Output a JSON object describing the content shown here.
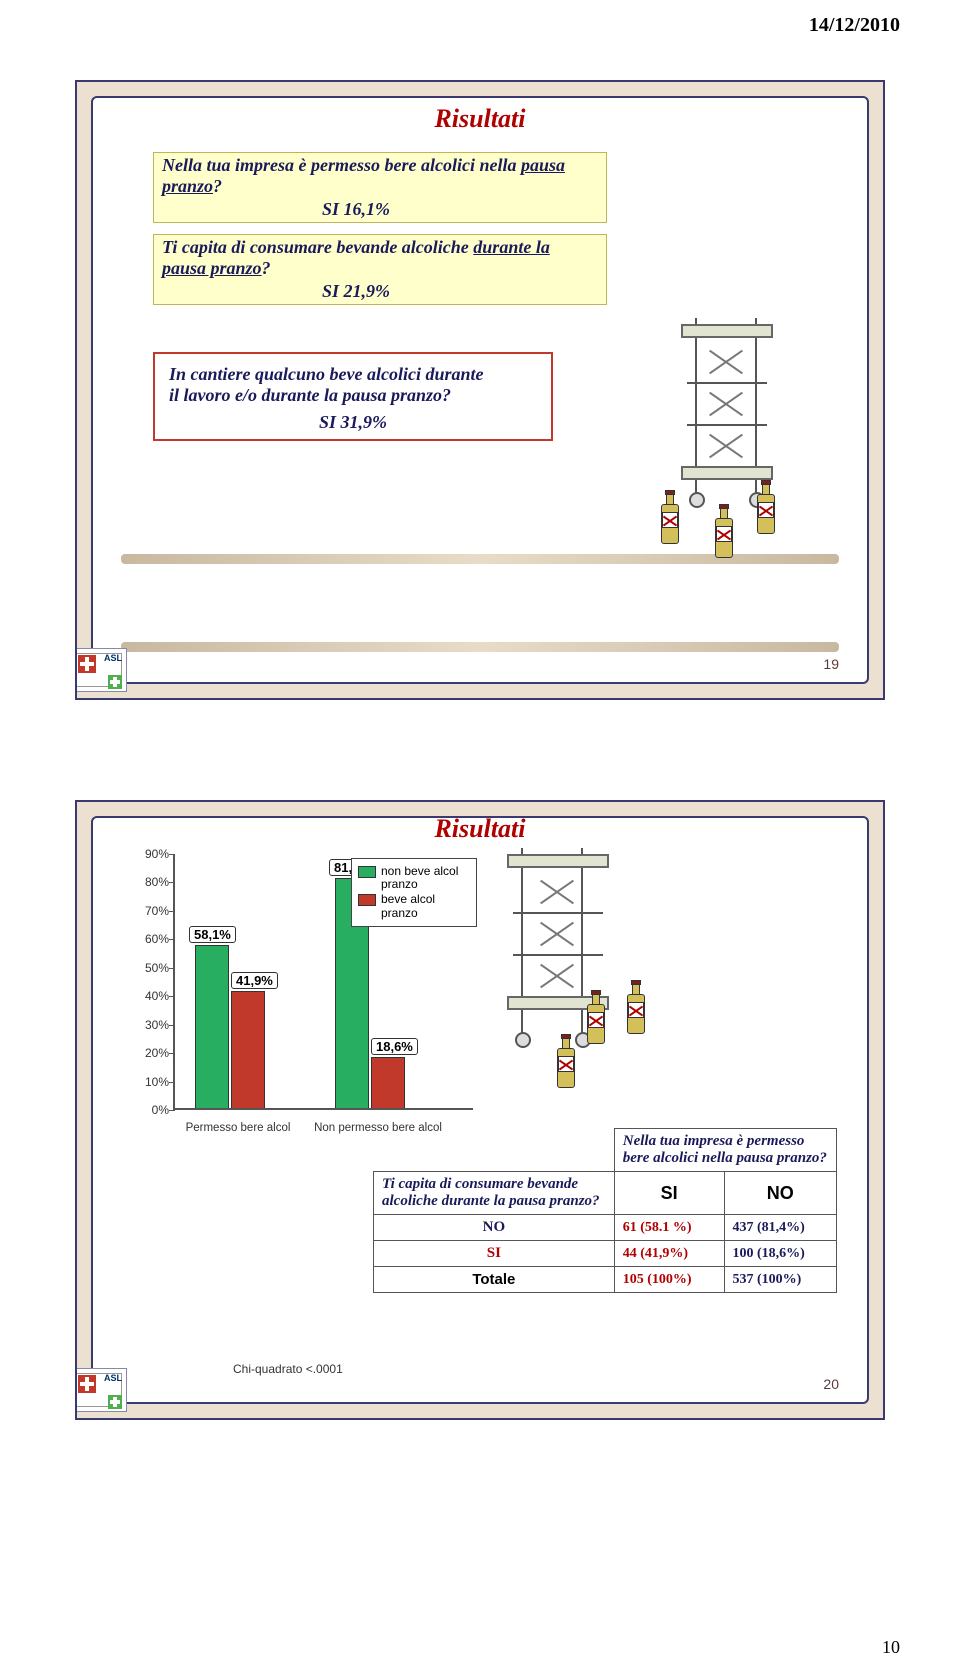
{
  "header_date": "14/12/2010",
  "page_number": "10",
  "slide1": {
    "title": "Risultati",
    "q1_text_a": "Nella tua impresa è permesso bere alcolici nella ",
    "q1_text_u": "pausa pranzo",
    "q1_punct": "?",
    "q1_ans": "SI     16,1%",
    "q2_text_a": "Ti capita di consumare bevande alcoliche ",
    "q2_text_u": "durante la pausa pranzo",
    "q2_punct": "?",
    "q2_ans": "SI     21,9%",
    "q3_l1": "In cantiere qualcuno beve alcolici durante",
    "q3_l2": "il lavoro e/o durante la pausa pranzo?",
    "q3_ans": "SI  31,9%",
    "slidenum": "19"
  },
  "slide2": {
    "title": "Risultati",
    "chart": {
      "yticks": [
        "0%",
        "10%",
        "20%",
        "30%",
        "40%",
        "50%",
        "60%",
        "70%",
        "80%",
        "90%"
      ],
      "ymax": 90,
      "groups": [
        {
          "xlabel": "Permesso bere alcol",
          "green": 58.1,
          "red": 41.9,
          "green_label": "58,1%",
          "red_label": "41,9%"
        },
        {
          "xlabel": "Non permesso bere alcol",
          "green": 81.4,
          "red": 18.6,
          "green_label": "81,4%",
          "red_label": "18,6%"
        }
      ],
      "legend_green": "non beve alcol pranzo",
      "legend_red": "beve alcol pranzo"
    },
    "table": {
      "corner_q": "Nella tua impresa è permesso bere alcolici nella pausa pranzo?",
      "row_q": "Ti capita di consumare bevande alcoliche durante la pausa pranzo?",
      "col_si": "SI",
      "col_no": "NO",
      "row_no": "NO",
      "row_si": "SI",
      "row_tot": "Totale",
      "c_no_si": "61 (58.1 %)",
      "c_no_no": "437 (81,4%)",
      "c_si_si": "44 (41,9%)",
      "c_si_no": "100 (18,6%)",
      "c_tot_si": "105 (100%)",
      "c_tot_no": "537 (100%)"
    },
    "chi": "Chi-quadrato <.0001",
    "slidenum": "20"
  }
}
